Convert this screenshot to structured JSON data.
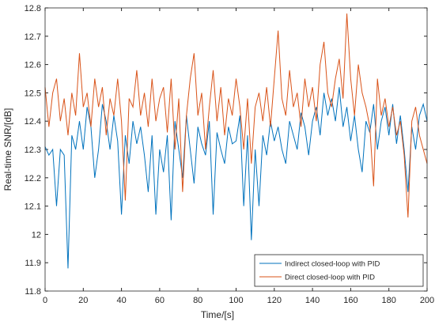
{
  "chart_data": {
    "type": "line",
    "x_label": "Time/[s]",
    "y_label": "Real-time SNR/[dB]",
    "x": [
      0,
      2,
      4,
      6,
      8,
      10,
      12,
      14,
      16,
      18,
      20,
      22,
      24,
      26,
      28,
      30,
      32,
      34,
      36,
      38,
      40,
      42,
      44,
      46,
      48,
      50,
      52,
      54,
      56,
      58,
      60,
      62,
      64,
      66,
      68,
      70,
      72,
      74,
      76,
      78,
      80,
      82,
      84,
      86,
      88,
      90,
      92,
      94,
      96,
      98,
      100,
      102,
      104,
      106,
      108,
      110,
      112,
      114,
      116,
      118,
      120,
      122,
      124,
      126,
      128,
      130,
      132,
      134,
      136,
      138,
      140,
      142,
      144,
      146,
      148,
      150,
      152,
      154,
      156,
      158,
      160,
      162,
      164,
      166,
      168,
      170,
      172,
      174,
      176,
      178,
      180,
      182,
      184,
      186,
      188,
      190,
      192,
      194,
      196,
      198,
      200
    ],
    "series": [
      {
        "name": "Indirect closed-loop with PID",
        "color": "#0072bd",
        "values": [
          12.31,
          12.28,
          12.3,
          12.1,
          12.3,
          12.28,
          11.88,
          12.35,
          12.3,
          12.4,
          12.3,
          12.45,
          12.38,
          12.2,
          12.3,
          12.46,
          12.4,
          12.3,
          12.42,
          12.33,
          12.07,
          12.35,
          12.25,
          12.4,
          12.32,
          12.38,
          12.28,
          12.15,
          12.35,
          12.07,
          12.3,
          12.22,
          12.35,
          12.05,
          12.4,
          12.3,
          12.2,
          12.42,
          12.3,
          12.18,
          12.38,
          12.32,
          12.28,
          12.4,
          12.07,
          12.36,
          12.3,
          12.25,
          12.38,
          12.32,
          12.33,
          12.42,
          12.1,
          12.35,
          11.98,
          12.3,
          12.1,
          12.35,
          12.28,
          12.4,
          12.33,
          12.38,
          12.3,
          12.25,
          12.4,
          12.35,
          12.3,
          12.43,
          12.38,
          12.28,
          12.4,
          12.45,
          12.35,
          12.5,
          12.42,
          12.48,
          12.4,
          12.52,
          12.38,
          12.45,
          12.33,
          12.42,
          12.3,
          12.22,
          12.4,
          12.36,
          12.46,
          12.3,
          12.4,
          12.45,
          12.35,
          12.46,
          12.32,
          12.42,
          12.3,
          12.15,
          12.38,
          12.3,
          12.42,
          12.46,
          12.4
        ]
      },
      {
        "name": "Direct closed-loop with PID",
        "color": "#d95319",
        "values": [
          12.52,
          12.38,
          12.5,
          12.55,
          12.4,
          12.48,
          12.35,
          12.5,
          12.42,
          12.64,
          12.45,
          12.5,
          12.38,
          12.55,
          12.45,
          12.52,
          12.35,
          12.48,
          12.42,
          12.55,
          12.4,
          12.12,
          12.48,
          12.45,
          12.58,
          12.42,
          12.5,
          12.38,
          12.55,
          12.4,
          12.48,
          12.52,
          12.36,
          12.55,
          12.3,
          12.48,
          12.15,
          12.42,
          12.55,
          12.64,
          12.42,
          12.5,
          12.3,
          12.45,
          12.58,
          12.4,
          12.52,
          12.35,
          12.48,
          12.42,
          12.55,
          12.45,
          12.3,
          12.48,
          12.25,
          12.45,
          12.5,
          12.4,
          12.52,
          12.38,
          12.55,
          12.72,
          12.48,
          12.42,
          12.58,
          12.45,
          12.5,
          12.38,
          12.55,
          12.45,
          12.52,
          12.4,
          12.6,
          12.68,
          12.5,
          12.45,
          12.55,
          12.62,
          12.48,
          12.78,
          12.55,
          12.42,
          12.6,
          12.5,
          12.45,
          12.38,
          12.17,
          12.55,
          12.42,
          12.48,
          12.38,
          12.45,
          12.35,
          12.4,
          12.28,
          12.06,
          12.4,
          12.45,
          12.35,
          12.3,
          12.25
        ]
      }
    ],
    "xlim": [
      0,
      200
    ],
    "xticks": [
      0,
      20,
      40,
      60,
      80,
      100,
      120,
      140,
      160,
      180,
      200
    ],
    "ylim": [
      11.8,
      12.8
    ],
    "yticks": [
      11.8,
      11.9,
      12,
      12.1,
      12.2,
      12.3,
      12.4,
      12.5,
      12.6,
      12.7,
      12.8
    ],
    "legend": "lower right"
  }
}
